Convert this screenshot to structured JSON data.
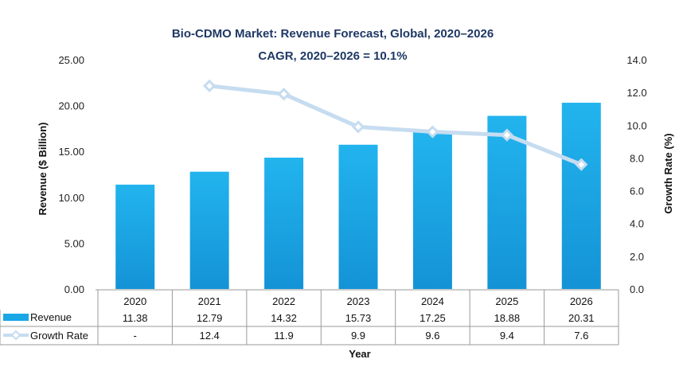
{
  "chart_data": {
    "type": "bar+line",
    "title": "Bio-CDMO Market: Revenue Forecast, Global, 2020–2026",
    "subtitle": "CAGR, 2020–2026 = 10.1%",
    "categories": [
      "2020",
      "2021",
      "2022",
      "2023",
      "2024",
      "2025",
      "2026"
    ],
    "xlabel": "Year",
    "ylabel_left": "Revenue ($ Billion)",
    "ylabel_right": "Growth Rate (%)",
    "ylim_left": [
      0,
      25
    ],
    "ylim_right": [
      0,
      14
    ],
    "yticks_left": [
      "0.00",
      "5.00",
      "10.00",
      "15.00",
      "20.00",
      "25.00"
    ],
    "yticks_right": [
      "0.0",
      "2.0",
      "4.0",
      "6.0",
      "8.0",
      "10.0",
      "12.0",
      "14.0"
    ],
    "series": [
      {
        "name": "Revenue",
        "type": "bar",
        "axis": "left",
        "color": "#1aa7e6",
        "values": [
          11.38,
          12.79,
          14.32,
          15.73,
          17.25,
          18.88,
          20.31
        ],
        "labels": [
          "11.38",
          "12.79",
          "14.32",
          "15.73",
          "17.25",
          "18.88",
          "20.31"
        ]
      },
      {
        "name": "Growth Rate",
        "type": "line",
        "axis": "right",
        "color": "#c6dcf0",
        "values": [
          null,
          12.4,
          11.9,
          9.9,
          9.6,
          9.4,
          7.6
        ],
        "labels": [
          "-",
          "12.4",
          "11.9",
          "9.9",
          "9.6",
          "9.4",
          "7.6"
        ]
      }
    ]
  }
}
